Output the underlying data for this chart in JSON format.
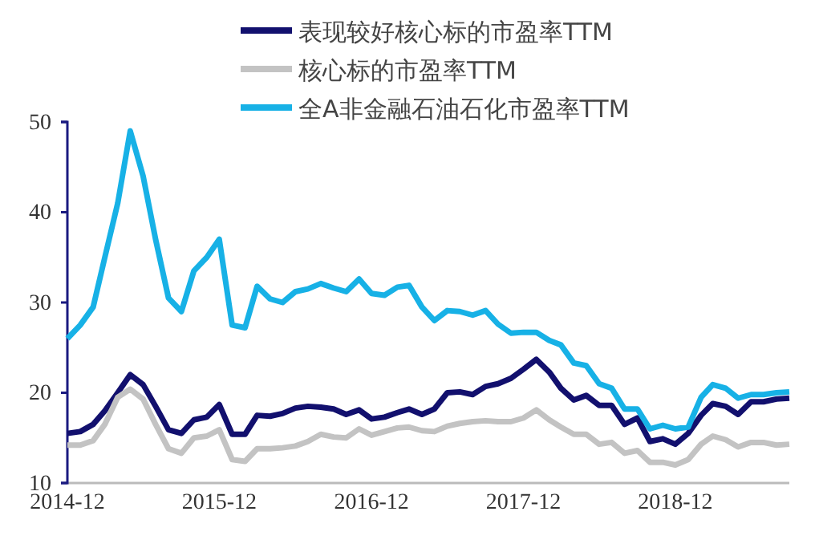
{
  "chart_data": {
    "type": "line",
    "legend": "top",
    "grid": false,
    "marker": "none",
    "line_style": "solid",
    "ylim": [
      10,
      50
    ],
    "yticks": [
      10,
      20,
      30,
      40,
      50
    ],
    "xlim": [
      "2014-12",
      "2019-09"
    ],
    "xticks": [
      {
        "value": "2014-12",
        "label": "2014-12"
      },
      {
        "value": "2015-12",
        "label": "2015-12"
      },
      {
        "value": "2016-12",
        "label": "2016-12"
      },
      {
        "value": "2017-12",
        "label": "2017-12"
      },
      {
        "value": "2018-12",
        "label": "2018-12"
      }
    ],
    "x": [
      "2014-12",
      "2015-01",
      "2015-02",
      "2015-03",
      "2015-04",
      "2015-05",
      "2015-06",
      "2015-07",
      "2015-08",
      "2015-09",
      "2015-10",
      "2015-11",
      "2015-12",
      "2016-01",
      "2016-02",
      "2016-03",
      "2016-04",
      "2016-05",
      "2016-06",
      "2016-07",
      "2016-08",
      "2016-09",
      "2016-10",
      "2016-11",
      "2016-12",
      "2017-01",
      "2017-02",
      "2017-03",
      "2017-04",
      "2017-05",
      "2017-06",
      "2017-07",
      "2017-08",
      "2017-09",
      "2017-10",
      "2017-11",
      "2017-12",
      "2018-01",
      "2018-02",
      "2018-03",
      "2018-04",
      "2018-05",
      "2018-06",
      "2018-07",
      "2018-08",
      "2018-09",
      "2018-10",
      "2018-11",
      "2018-12",
      "2019-01",
      "2019-02",
      "2019-03",
      "2019-04",
      "2019-05",
      "2019-06",
      "2019-07",
      "2019-08",
      "2019-09"
    ],
    "series": [
      {
        "name": "表现较好核心标的市盈率TTM",
        "color": "#12106e",
        "values": [
          15.5,
          15.7,
          16.5,
          18,
          20,
          22,
          20.9,
          18.5,
          15.9,
          15.5,
          17,
          17.3,
          18.7,
          15.4,
          15.4,
          17.5,
          17.4,
          17.7,
          18.3,
          18.5,
          18.4,
          18.2,
          17.6,
          18.1,
          17.1,
          17.3,
          17.8,
          18.2,
          17.6,
          18.2,
          20,
          20.1,
          19.8,
          20.7,
          21,
          21.6,
          22.6,
          23.7,
          22.3,
          20.5,
          19.2,
          19.7,
          18.6,
          18.6,
          16.5,
          17.2,
          14.6,
          14.9,
          14.3,
          15.5,
          17.5,
          18.8,
          18.5,
          17.6,
          19,
          19,
          19.3,
          19.4
        ]
      },
      {
        "name": "核心标的市盈率TTM",
        "color": "#c3c3c3",
        "values": [
          14.2,
          14.2,
          14.7,
          16.5,
          19.5,
          20.4,
          19.3,
          16.5,
          13.8,
          13.3,
          15,
          15.2,
          15.9,
          12.6,
          12.4,
          13.8,
          13.8,
          13.9,
          14.1,
          14.6,
          15.4,
          15.1,
          15,
          16,
          15.3,
          15.7,
          16.1,
          16.2,
          15.8,
          15.7,
          16.3,
          16.6,
          16.8,
          16.9,
          16.8,
          16.8,
          17.2,
          18.1,
          17,
          16.2,
          15.4,
          15.4,
          14.3,
          14.5,
          13.3,
          13.6,
          12.3,
          12.3,
          12,
          12.6,
          14.3,
          15.2,
          14.8,
          14,
          14.5,
          14.5,
          14.2,
          14.3
        ]
      },
      {
        "name": "全A非金融石油石化市盈率TTM",
        "color": "#17b1e6",
        "values": [
          26,
          27.5,
          29.5,
          35,
          41,
          49,
          44,
          37,
          30.5,
          29,
          33.5,
          35,
          37,
          27.5,
          27.2,
          31.8,
          30.4,
          30,
          31.2,
          31.5,
          32.1,
          31.6,
          31.2,
          32.6,
          31,
          30.8,
          31.7,
          31.9,
          29.5,
          28,
          29.1,
          29,
          28.6,
          29.1,
          27.6,
          26.6,
          26.7,
          26.7,
          25.8,
          25.3,
          23.3,
          23,
          21,
          20.5,
          18.2,
          18.2,
          16,
          16.4,
          16,
          16.2,
          19.5,
          20.9,
          20.5,
          19.4,
          19.8,
          19.8,
          20,
          20.1
        ]
      }
    ]
  }
}
